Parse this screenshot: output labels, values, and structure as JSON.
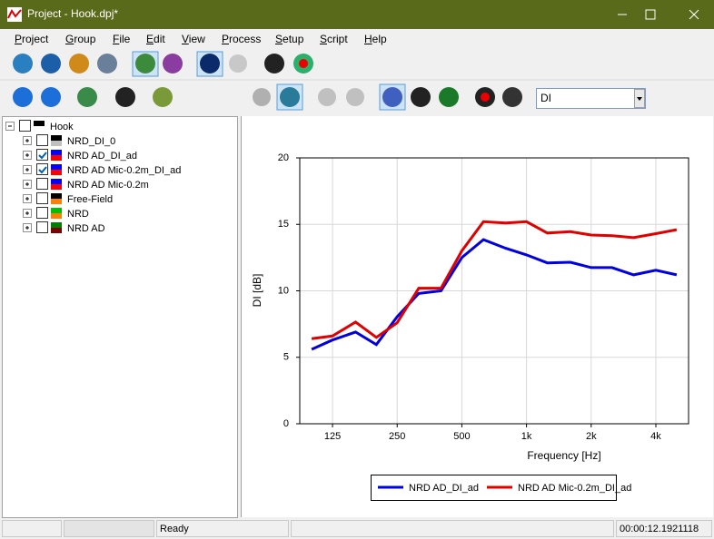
{
  "window": {
    "title": "Project - Hook.dpj*"
  },
  "menu": [
    "Project",
    "Group",
    "File",
    "Edit",
    "View",
    "Process",
    "Setup",
    "Script",
    "Help"
  ],
  "dropdown": "DI",
  "tree": {
    "root": {
      "label": "Hook",
      "checked": false,
      "swatch": [
        "#000000",
        "#ffffff"
      ]
    },
    "items": [
      {
        "label": "NRD_DI_0",
        "checked": false,
        "swatch": [
          "#000000",
          "#c0c0c0"
        ]
      },
      {
        "label": "NRD AD_DI_ad",
        "checked": true,
        "swatch": [
          "#0000ff",
          "#ff0000"
        ]
      },
      {
        "label": "NRD AD Mic-0.2m_DI_ad",
        "checked": true,
        "swatch": [
          "#0000ff",
          "#ff0000"
        ]
      },
      {
        "label": "NRD AD Mic-0.2m",
        "checked": false,
        "swatch": [
          "#0000ff",
          "#ff0000"
        ]
      },
      {
        "label": "Free-Field",
        "checked": false,
        "swatch": [
          "#000000",
          "#ff8000"
        ]
      },
      {
        "label": "NRD",
        "checked": false,
        "swatch": [
          "#00c000",
          "#ff8000"
        ]
      },
      {
        "label": "NRD AD",
        "checked": false,
        "swatch": [
          "#008000",
          "#800000"
        ]
      }
    ]
  },
  "status": {
    "message": "Ready",
    "time": "00:00:12.1921118"
  },
  "chart_data": {
    "type": "line",
    "x_label": "Frequency [Hz]",
    "y_label": "DI [dB]",
    "x": [
      100,
      125,
      160,
      200,
      250,
      315,
      400,
      500,
      630,
      800,
      1000,
      1250,
      1600,
      2000,
      2500,
      3150,
      4000,
      5000
    ],
    "series": [
      {
        "name": "NRD AD_DI_ad",
        "color": "#0000e0",
        "values": [
          5.6,
          6.3,
          6.9,
          5.95,
          8.05,
          9.8,
          10.0,
          12.5,
          13.85,
          13.2,
          12.7,
          12.1,
          12.15,
          11.75,
          11.75,
          11.2,
          11.55,
          11.2
        ]
      },
      {
        "name": "NRD AD Mic-0.2m_DI_ad",
        "color": "#e00000",
        "values": [
          6.4,
          6.6,
          7.65,
          6.5,
          7.6,
          10.2,
          10.2,
          13.0,
          15.2,
          15.1,
          15.2,
          14.35,
          14.45,
          14.2,
          14.15,
          14.0,
          14.3,
          14.6
        ]
      }
    ],
    "xlog": true,
    "xlim": [
      88,
      5680
    ],
    "xticks": [
      125,
      250,
      500,
      {
        "value": 1000,
        "label": "1k"
      },
      {
        "value": 2000,
        "label": "2k"
      },
      {
        "value": 4000,
        "label": "4k"
      }
    ],
    "ylim": [
      0,
      20
    ],
    "yticks": [
      0,
      5,
      10,
      15,
      20
    ],
    "grid": true,
    "legend": "bottom"
  }
}
